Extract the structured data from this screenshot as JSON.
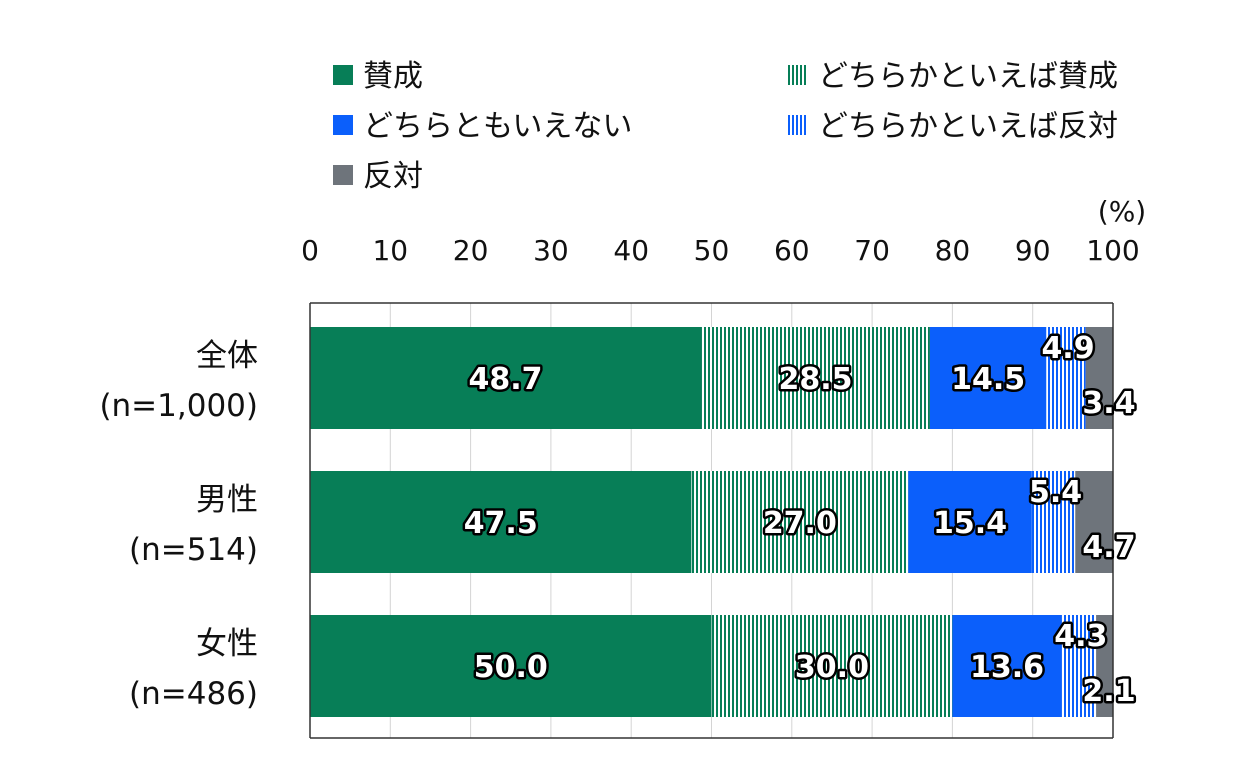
{
  "chart_data": {
    "type": "bar",
    "orientation": "horizontal",
    "stacked": true,
    "unit_label": "(%)",
    "xlim": [
      0,
      100
    ],
    "xticks": [
      "0",
      "10",
      "20",
      "30",
      "40",
      "50",
      "60",
      "70",
      "80",
      "90",
      "100"
    ],
    "grid": "vertical gridlines at each tick",
    "legend_position": "top",
    "categories": [
      {
        "name": "全体",
        "n": "(n=1,000)"
      },
      {
        "name": "男性",
        "n": "(n=514)"
      },
      {
        "name": "女性",
        "n": "(n=486)"
      }
    ],
    "series": [
      {
        "name": "賛成",
        "color": "#077E57",
        "pattern": "solid",
        "values": [
          48.7,
          47.5,
          50.0
        ],
        "labels": [
          "48.7",
          "47.5",
          "50.0"
        ]
      },
      {
        "name": "どちらかといえば賛成",
        "color": "#077E57",
        "pattern": "vertical-stripes",
        "values": [
          28.5,
          27.0,
          30.0
        ],
        "labels": [
          "28.5",
          "27.0",
          "30.0"
        ]
      },
      {
        "name": "どちらともいえない",
        "color": "#0B5FFB",
        "pattern": "solid",
        "values": [
          14.5,
          15.4,
          13.6
        ],
        "labels": [
          "14.5",
          "15.4",
          "13.6"
        ]
      },
      {
        "name": "どちらかといえば反対",
        "color": "#0B5FFB",
        "pattern": "vertical-stripes",
        "values": [
          4.9,
          5.4,
          4.3
        ],
        "labels": [
          "4.9",
          "5.4",
          "4.3"
        ]
      },
      {
        "name": "反対",
        "color": "#6E747B",
        "pattern": "solid",
        "values": [
          3.4,
          4.7,
          2.1
        ],
        "labels": [
          "3.4",
          "4.7",
          "2.1"
        ]
      }
    ]
  }
}
